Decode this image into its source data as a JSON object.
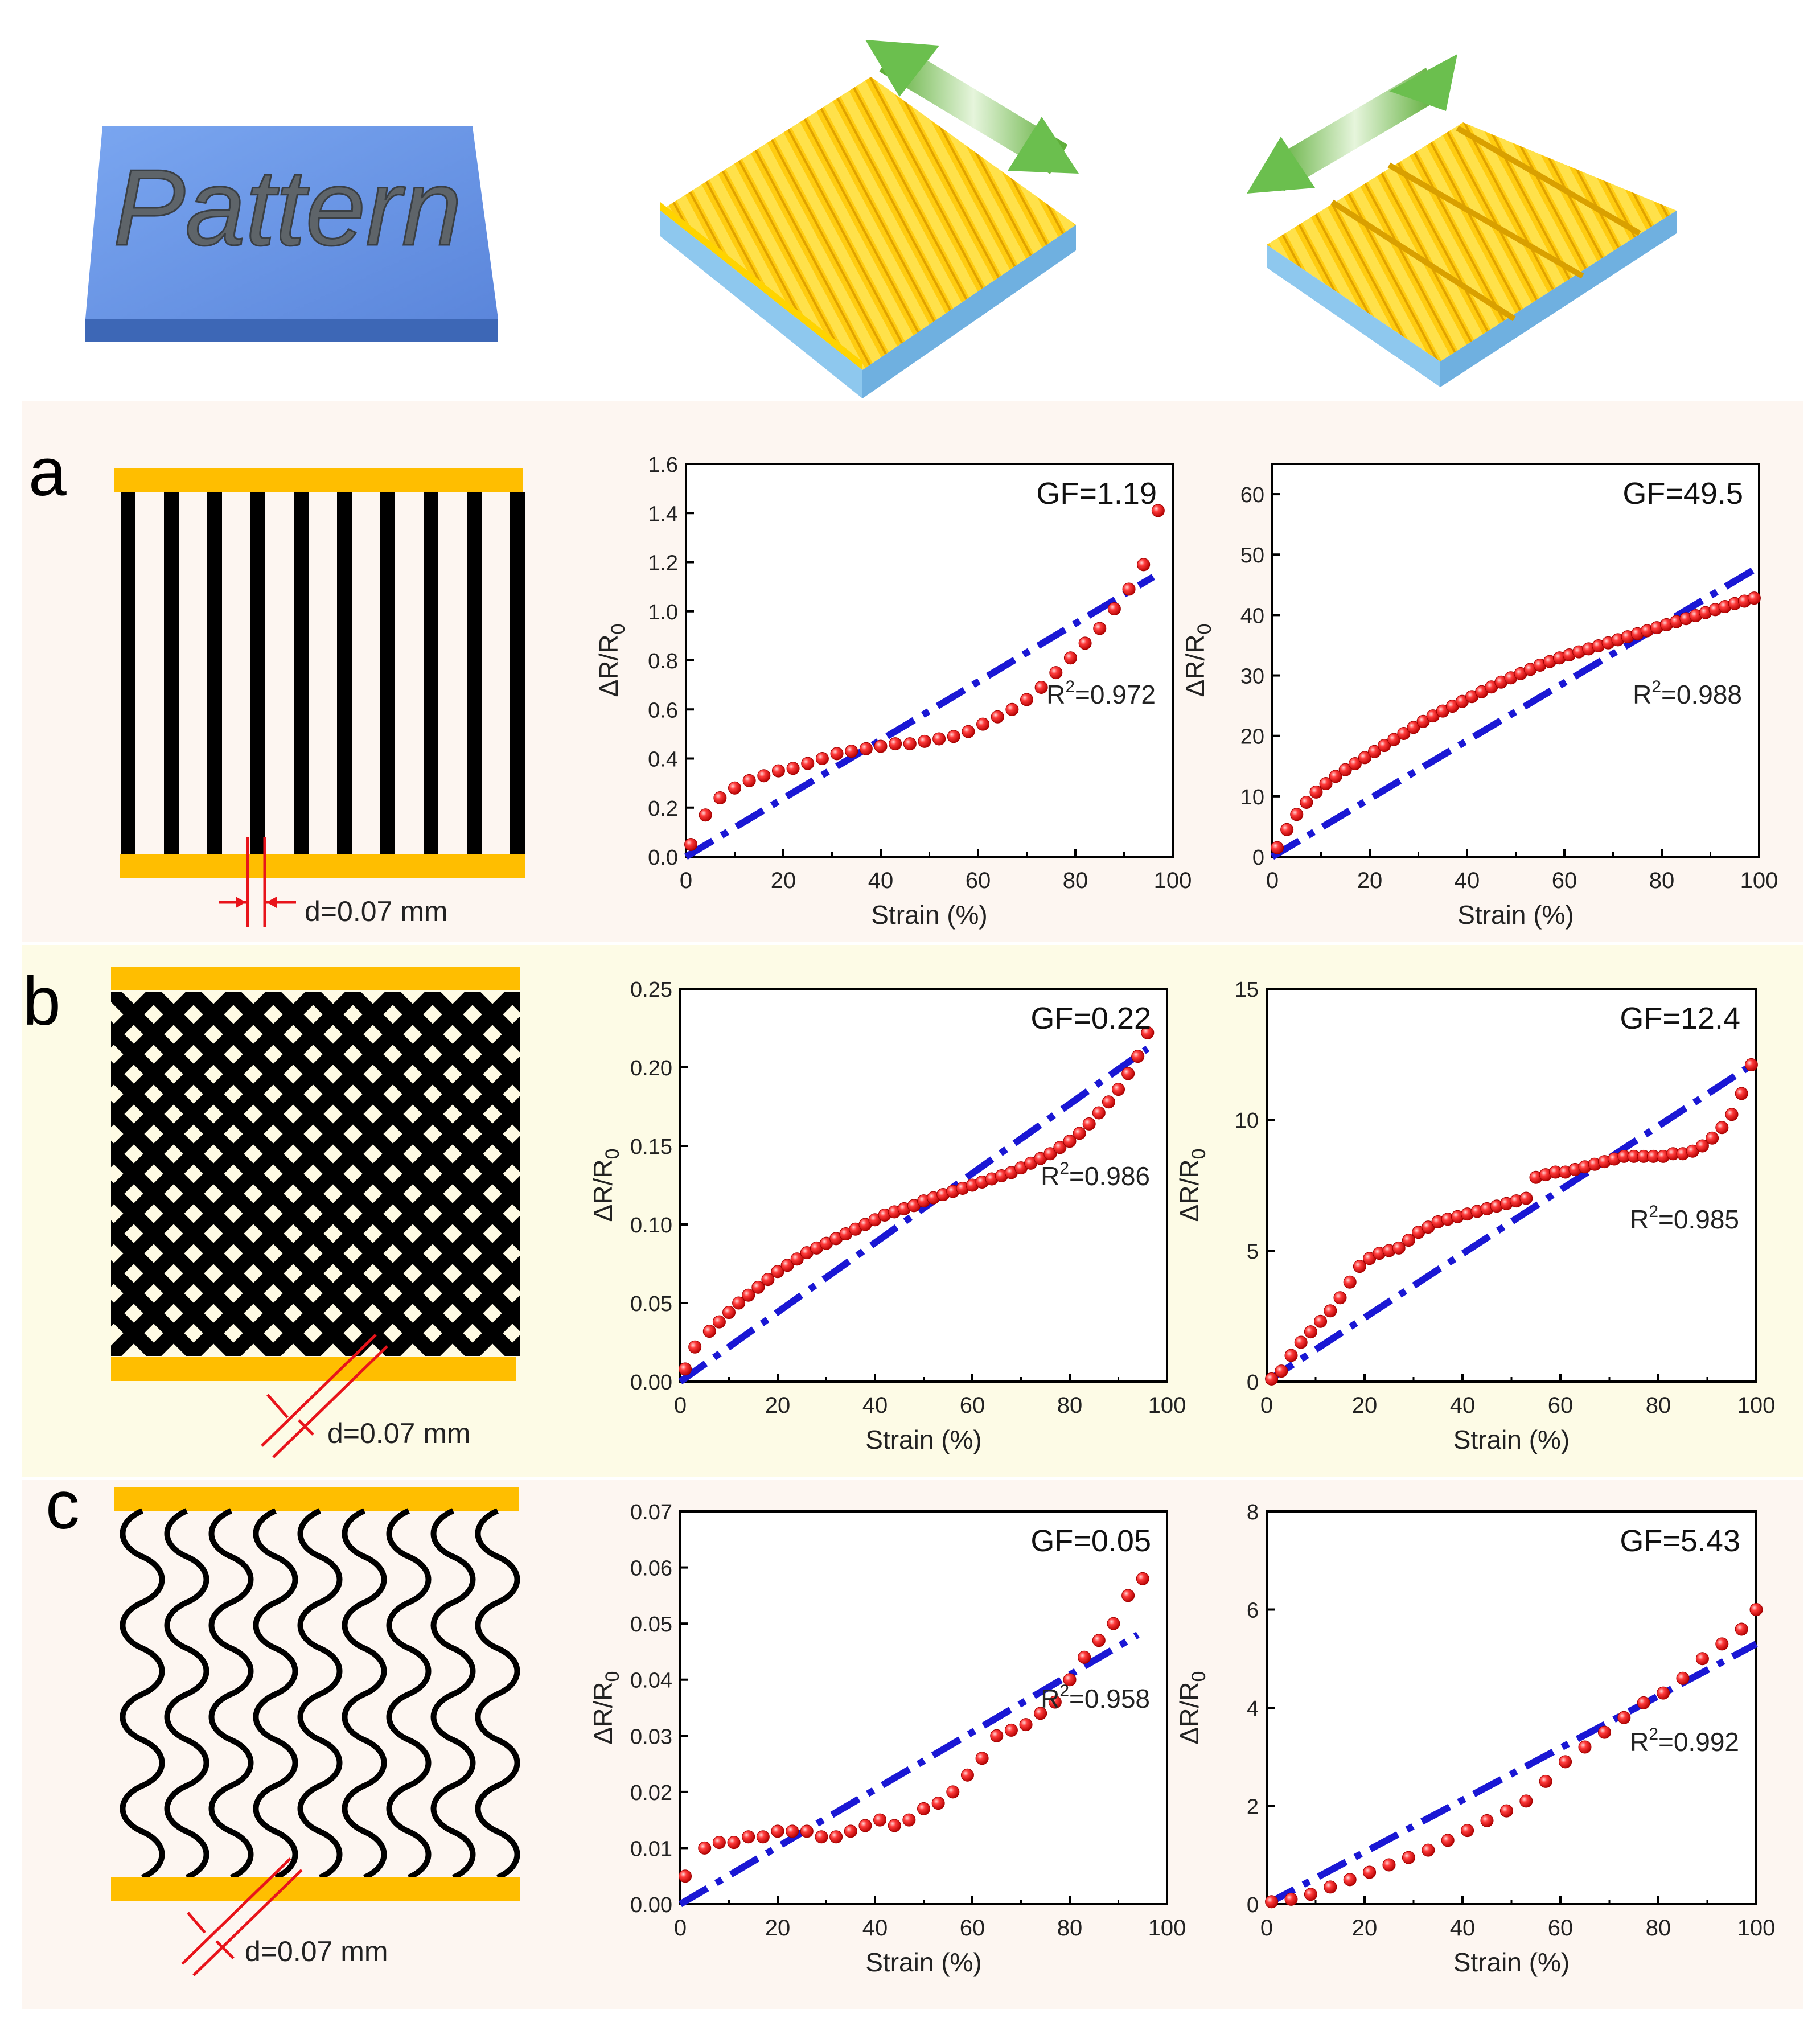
{
  "top": {
    "pattern_label": "Pattern"
  },
  "rows": [
    {
      "letter": "a",
      "bg": "#fdf6f1",
      "pattern_type": "lines",
      "d_label": "d=0.07 mm"
    },
    {
      "letter": "b",
      "bg": "#fdfbe6",
      "pattern_type": "mesh",
      "d_label": "d=0.07 mm"
    },
    {
      "letter": "c",
      "bg": "#fdf6f1",
      "pattern_type": "wavy",
      "d_label": "d=0.07 mm"
    }
  ],
  "colors": {
    "electrode": "#ffbe00",
    "marker": "#e8141b",
    "fit": "#1a17d4",
    "arrow": "#6bbf4e",
    "film_top": "#ffcc00",
    "substrate": "#9ccff0",
    "pattern_block": "#6f98e6"
  },
  "chart_data": [
    {
      "type": "scatter",
      "panel": "a-left",
      "xlabel": "Strain (%)",
      "ylabel_main": "ΔR/R",
      "ylabel_sub": "0",
      "xlim": [
        0,
        100
      ],
      "ylim": [
        0,
        1.6
      ],
      "xticks": [
        "0",
        "20",
        "40",
        "60",
        "80",
        "100"
      ],
      "yticks": [
        "0.0",
        "0.2",
        "0.4",
        "0.6",
        "0.8",
        "1.0",
        "1.2",
        "1.4",
        "1.6"
      ],
      "gf": "GF=1.19",
      "r2_base": "R",
      "r2_sup": "2",
      "r2_value": "=0.972",
      "fit": {
        "x": [
          0,
          96
        ],
        "y": [
          0,
          1.14
        ]
      },
      "x": [
        1,
        4,
        7,
        10,
        13,
        16,
        19,
        22,
        25,
        28,
        31,
        34,
        37,
        40,
        43,
        46,
        49,
        52,
        55,
        58,
        61,
        64,
        67,
        70,
        73,
        76,
        79,
        82,
        85,
        88,
        91,
        94,
        97
      ],
      "y": [
        0.05,
        0.17,
        0.24,
        0.28,
        0.31,
        0.33,
        0.35,
        0.36,
        0.38,
        0.4,
        0.42,
        0.43,
        0.44,
        0.45,
        0.46,
        0.46,
        0.47,
        0.48,
        0.49,
        0.51,
        0.54,
        0.57,
        0.6,
        0.64,
        0.69,
        0.75,
        0.81,
        0.87,
        0.93,
        1.01,
        1.09,
        1.19,
        1.41
      ]
    },
    {
      "type": "scatter",
      "panel": "a-right",
      "xlabel": "Strain (%)",
      "ylabel_main": "ΔR/R",
      "ylabel_sub": "0",
      "xlim": [
        0,
        100
      ],
      "ylim": [
        0,
        65
      ],
      "xticks": [
        "0",
        "20",
        "40",
        "60",
        "80",
        "100"
      ],
      "yticks": [
        "0",
        "10",
        "20",
        "30",
        "40",
        "50",
        "60"
      ],
      "ytick_values": [
        0,
        10,
        20,
        30,
        40,
        50,
        60
      ],
      "gf": "GF=49.5",
      "r2_base": "R",
      "r2_sup": "2",
      "r2_value": "=0.988",
      "fit": {
        "x": [
          0,
          100
        ],
        "y": [
          0,
          48
        ]
      },
      "x": [
        1,
        3,
        5,
        7,
        9,
        11,
        13,
        15,
        17,
        19,
        21,
        23,
        25,
        27,
        29,
        31,
        33,
        35,
        37,
        39,
        41,
        43,
        45,
        47,
        49,
        51,
        53,
        55,
        57,
        59,
        61,
        63,
        65,
        67,
        69,
        71,
        73,
        75,
        77,
        79,
        81,
        83,
        85,
        87,
        89,
        91,
        93,
        95,
        97,
        99
      ],
      "y": [
        1.5,
        4.5,
        7.0,
        9.0,
        10.7,
        12.1,
        13.3,
        14.4,
        15.4,
        16.4,
        17.4,
        18.4,
        19.4,
        20.4,
        21.4,
        22.4,
        23.3,
        24.1,
        24.9,
        25.7,
        26.5,
        27.3,
        28.1,
        28.9,
        29.6,
        30.3,
        31.0,
        31.7,
        32.3,
        32.9,
        33.4,
        33.9,
        34.4,
        34.9,
        35.4,
        35.9,
        36.4,
        36.9,
        37.4,
        37.9,
        38.4,
        38.9,
        39.4,
        39.9,
        40.4,
        40.9,
        41.4,
        41.9,
        42.3,
        42.8
      ]
    },
    {
      "type": "scatter",
      "panel": "b-left",
      "xlabel": "Strain (%)",
      "ylabel_main": "ΔR/R",
      "ylabel_sub": "0",
      "xlim": [
        0,
        100
      ],
      "ylim": [
        0,
        0.25
      ],
      "xticks": [
        "0",
        "20",
        "40",
        "60",
        "80",
        "100"
      ],
      "yticks": [
        "0.00",
        "0.05",
        "0.10",
        "0.15",
        "0.20",
        "0.25"
      ],
      "gf": "GF=0.22",
      "r2_base": "R",
      "r2_sup": "2",
      "r2_value": "=0.986",
      "fit": {
        "x": [
          0,
          96
        ],
        "y": [
          0,
          0.212
        ]
      },
      "x": [
        1,
        3,
        6,
        8,
        10,
        12,
        14,
        16,
        18,
        20,
        22,
        24,
        26,
        28,
        30,
        32,
        34,
        36,
        38,
        40,
        42,
        44,
        46,
        48,
        50,
        52,
        54,
        56,
        58,
        60,
        62,
        64,
        66,
        68,
        70,
        72,
        74,
        76,
        78,
        80,
        82,
        84,
        86,
        88,
        90,
        92,
        94,
        96
      ],
      "y": [
        0.008,
        0.022,
        0.032,
        0.038,
        0.044,
        0.05,
        0.055,
        0.06,
        0.065,
        0.07,
        0.074,
        0.078,
        0.082,
        0.085,
        0.088,
        0.091,
        0.094,
        0.097,
        0.1,
        0.103,
        0.106,
        0.108,
        0.11,
        0.112,
        0.115,
        0.117,
        0.119,
        0.121,
        0.123,
        0.125,
        0.127,
        0.129,
        0.131,
        0.133,
        0.136,
        0.139,
        0.142,
        0.145,
        0.149,
        0.153,
        0.158,
        0.164,
        0.171,
        0.178,
        0.186,
        0.196,
        0.207,
        0.222
      ]
    },
    {
      "type": "scatter",
      "panel": "b-right",
      "xlabel": "Strain (%)",
      "ylabel_main": "ΔR/R",
      "ylabel_sub": "0",
      "xlim": [
        0,
        100
      ],
      "ylim": [
        0,
        15
      ],
      "xticks": [
        "0",
        "20",
        "40",
        "60",
        "80",
        "100"
      ],
      "yticks": [
        "0",
        "5",
        "10",
        "15"
      ],
      "ytick_values": [
        0,
        5,
        10,
        15
      ],
      "gf": "GF=12.4",
      "r2_base": "R",
      "r2_sup": "2",
      "r2_value": "=0.985",
      "fit": {
        "x": [
          0,
          100
        ],
        "y": [
          0,
          12.2
        ]
      },
      "x": [
        1,
        3,
        5,
        7,
        9,
        11,
        13,
        15,
        17,
        19,
        21,
        23,
        25,
        27,
        29,
        31,
        33,
        35,
        37,
        39,
        41,
        43,
        45,
        47,
        49,
        51,
        53,
        55,
        57,
        59,
        61,
        63,
        65,
        67,
        69,
        71,
        73,
        75,
        77,
        79,
        81,
        83,
        85,
        87,
        89,
        91,
        93,
        95,
        97,
        99
      ],
      "y": [
        0.1,
        0.4,
        1.0,
        1.5,
        1.9,
        2.3,
        2.7,
        3.2,
        3.8,
        4.4,
        4.7,
        4.9,
        5.0,
        5.1,
        5.4,
        5.7,
        5.9,
        6.1,
        6.2,
        6.3,
        6.4,
        6.5,
        6.6,
        6.7,
        6.8,
        6.9,
        7.0,
        7.8,
        7.9,
        8.0,
        8.0,
        8.1,
        8.2,
        8.3,
        8.4,
        8.5,
        8.6,
        8.6,
        8.6,
        8.6,
        8.6,
        8.7,
        8.7,
        8.8,
        9.0,
        9.3,
        9.7,
        10.2,
        11.0,
        12.1
      ]
    },
    {
      "type": "scatter",
      "panel": "c-left",
      "xlabel": "Strain (%)",
      "ylabel_main": "ΔR/R",
      "ylabel_sub": "0",
      "xlim": [
        0,
        100
      ],
      "ylim": [
        0,
        0.07
      ],
      "xticks": [
        "0",
        "20",
        "40",
        "60",
        "80",
        "100"
      ],
      "yticks": [
        "0.00",
        "0.01",
        "0.02",
        "0.03",
        "0.04",
        "0.05",
        "0.06",
        "0.07"
      ],
      "gf": "GF=0.05",
      "r2_base": "R",
      "r2_sup": "2",
      "r2_value": "=0.958",
      "fit": {
        "x": [
          0,
          94
        ],
        "y": [
          0,
          0.048
        ]
      },
      "x": [
        1,
        5,
        8,
        11,
        14,
        17,
        20,
        23,
        26,
        29,
        32,
        35,
        38,
        41,
        44,
        47,
        50,
        53,
        56,
        59,
        62,
        65,
        68,
        71,
        74,
        77,
        80,
        83,
        86,
        89,
        92,
        95
      ],
      "y": [
        0.005,
        0.01,
        0.011,
        0.011,
        0.012,
        0.012,
        0.013,
        0.013,
        0.013,
        0.012,
        0.012,
        0.013,
        0.014,
        0.015,
        0.014,
        0.015,
        0.017,
        0.018,
        0.02,
        0.023,
        0.026,
        0.03,
        0.031,
        0.032,
        0.034,
        0.036,
        0.04,
        0.044,
        0.047,
        0.05,
        0.055,
        0.058
      ]
    },
    {
      "type": "scatter",
      "panel": "c-right",
      "xlabel": "Strain (%)",
      "ylabel_main": "ΔR/R",
      "ylabel_sub": "0",
      "xlim": [
        0,
        100
      ],
      "ylim": [
        0,
        8
      ],
      "xticks": [
        "0",
        "20",
        "40",
        "60",
        "80",
        "100"
      ],
      "yticks": [
        "0",
        "2",
        "4",
        "6",
        "8"
      ],
      "ytick_values": [
        0,
        2,
        4,
        6,
        8
      ],
      "gf": "GF=5.43",
      "r2_base": "R",
      "r2_sup": "2",
      "r2_value": "=0.992",
      "fit": {
        "x": [
          0,
          100
        ],
        "y": [
          0,
          5.3
        ]
      },
      "x": [
        1,
        5,
        9,
        13,
        17,
        21,
        25,
        29,
        33,
        37,
        41,
        45,
        49,
        53,
        57,
        61,
        65,
        69,
        73,
        77,
        81,
        85,
        89,
        93,
        97,
        100
      ],
      "y": [
        0.05,
        0.1,
        0.2,
        0.35,
        0.5,
        0.65,
        0.8,
        0.95,
        1.1,
        1.3,
        1.5,
        1.7,
        1.9,
        2.1,
        2.5,
        2.9,
        3.2,
        3.5,
        3.8,
        4.1,
        4.3,
        4.6,
        5.0,
        5.3,
        5.6,
        6.0
      ]
    }
  ]
}
